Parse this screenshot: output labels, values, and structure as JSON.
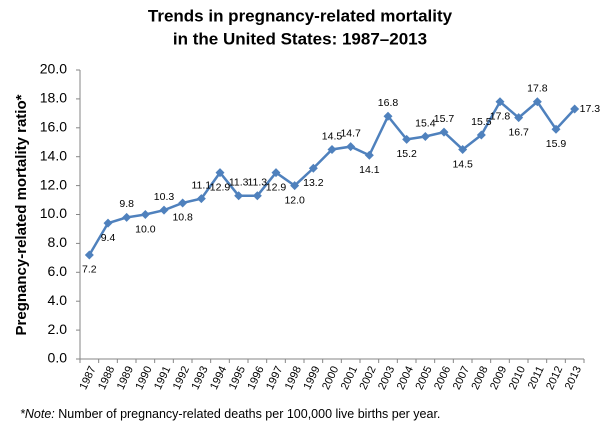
{
  "chart_data": {
    "type": "line",
    "title": [
      "Trends in pregnancy-related mortality",
      "in the United States: 1987–2013"
    ],
    "y_label": "Pregnancy-related mortality ratio*",
    "note": {
      "lead": "*Note:",
      "text": "Number of pregnancy-related deaths per 100,000 live births per year."
    },
    "categories": [
      "1987",
      "1988",
      "1989",
      "1990",
      "1991",
      "1992",
      "1993",
      "1994",
      "1995",
      "1996",
      "1997",
      "1998",
      "1999",
      "2000",
      "2001",
      "2002",
      "2003",
      "2004",
      "2005",
      "2006",
      "2007",
      "2008",
      "2009",
      "2010",
      "2011",
      "2012",
      "2013"
    ],
    "values": [
      7.2,
      9.4,
      9.8,
      10.0,
      10.3,
      10.8,
      11.1,
      12.9,
      11.3,
      11.3,
      12.9,
      12.0,
      13.2,
      14.5,
      14.7,
      14.1,
      16.8,
      15.2,
      15.4,
      15.7,
      14.5,
      15.5,
      17.8,
      16.7,
      17.8,
      15.9,
      17.3
    ],
    "value_labels": [
      "7.2",
      "9.4",
      "9.8",
      "10.0",
      "10.3",
      "10.8",
      "11.1",
      "12.9",
      "11.3",
      "11.3",
      "12.9",
      "12.0",
      "13.2",
      "14.5",
      "14.7",
      "14.1",
      "16.8",
      "15.2",
      "15.4",
      "15.7",
      "14.5",
      "15.5",
      "17.8",
      "16.7",
      "17.8",
      "15.9",
      "17.3"
    ],
    "color": "#4f81bd",
    "ylim": [
      0,
      20
    ],
    "yticks": [
      {
        "value": 0,
        "label": "0.0"
      },
      {
        "value": 2,
        "label": "2.0"
      },
      {
        "value": 4,
        "label": "4.0"
      },
      {
        "value": 6,
        "label": "6.0"
      },
      {
        "value": 8,
        "label": "8.0"
      },
      {
        "value": 10,
        "label": "10.0"
      },
      {
        "value": 12,
        "label": "12.0"
      },
      {
        "value": 14,
        "label": "14.0"
      },
      {
        "value": 16,
        "label": "16.0"
      },
      {
        "value": 18,
        "label": "18.0"
      },
      {
        "value": 20,
        "label": "20.0"
      }
    ],
    "grid": false
  }
}
